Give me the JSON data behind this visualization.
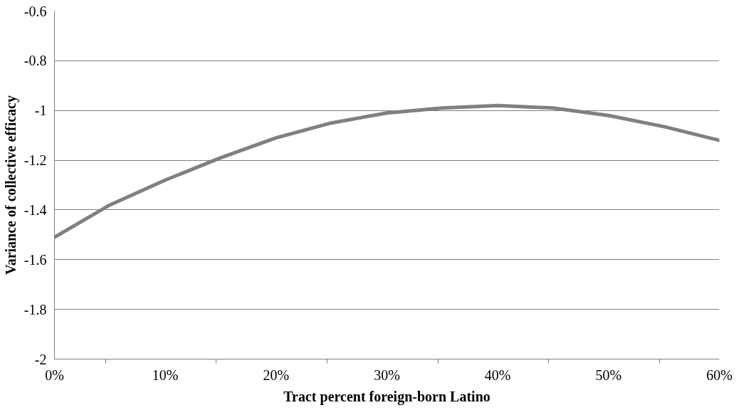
{
  "chart_data": {
    "type": "line",
    "xlabel": "Tract percent foreign-born Latino",
    "ylabel": "Variance of collective efficacy",
    "x": [
      0,
      5,
      10,
      15,
      20,
      25,
      30,
      35,
      40,
      45,
      50,
      55,
      60
    ],
    "series": [
      {
        "color": "#808080",
        "values": [
          -1.51,
          -1.38,
          -1.28,
          -1.19,
          -1.11,
          -1.05,
          -1.01,
          -0.99,
          -0.98,
          -0.99,
          -1.02,
          -1.065,
          -1.12
        ]
      }
    ],
    "xlim": [
      0,
      60
    ],
    "xticks": [
      {
        "value": 0,
        "label": "0%"
      },
      {
        "value": 10,
        "label": "10%"
      },
      {
        "value": 20,
        "label": "20%"
      },
      {
        "value": 30,
        "label": "30%"
      },
      {
        "value": 40,
        "label": "40%"
      },
      {
        "value": 50,
        "label": "50%"
      },
      {
        "value": 60,
        "label": "60%"
      },
      {
        "value": 4.6,
        "label": null
      },
      {
        "value": 14.6,
        "label": null
      },
      {
        "value": 24.6,
        "label": null
      },
      {
        "value": 34.6,
        "label": null
      },
      {
        "value": 44.6,
        "label": null
      },
      {
        "value": 54.6,
        "label": null
      }
    ],
    "ylim": [
      -2,
      -0.6
    ],
    "yticks": [
      -2,
      -1.8,
      -1.6,
      -1.4,
      -1.2,
      -1,
      -0.8,
      -0.6
    ],
    "grid": "y",
    "marker": "none",
    "line_style": "solid"
  }
}
